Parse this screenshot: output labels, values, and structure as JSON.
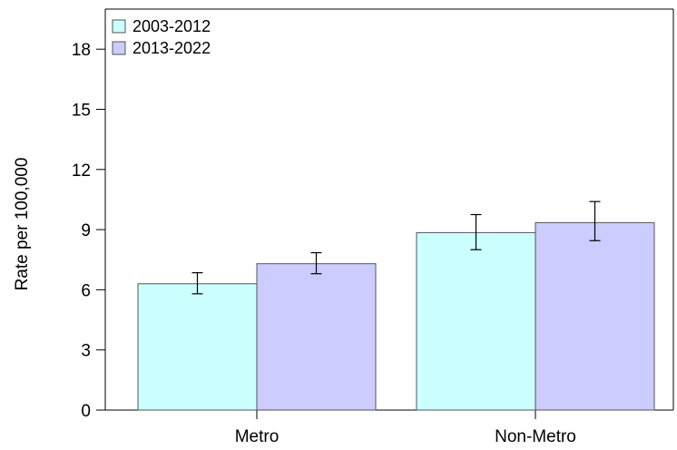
{
  "chart_data": {
    "type": "bar",
    "categories": [
      "Metro",
      "Non-Metro"
    ],
    "series": [
      {
        "name": "2003-2012",
        "values": [
          6.3,
          8.85
        ],
        "error_low": [
          5.8,
          8.0
        ],
        "error_high": [
          6.85,
          9.75
        ],
        "color": "#ccffff"
      },
      {
        "name": "2013-2022",
        "values": [
          7.3,
          9.35
        ],
        "error_low": [
          6.8,
          8.45
        ],
        "error_high": [
          7.85,
          10.4
        ],
        "color": "#ccccff"
      }
    ],
    "title": "",
    "xlabel": "",
    "ylabel": "Rate per 100,000",
    "ylim": [
      0,
      20
    ],
    "yticks": [
      "0",
      "3",
      "6",
      "9",
      "12",
      "15",
      "18"
    ],
    "grid": false,
    "legend_position": "top-left",
    "error_bars": true
  }
}
